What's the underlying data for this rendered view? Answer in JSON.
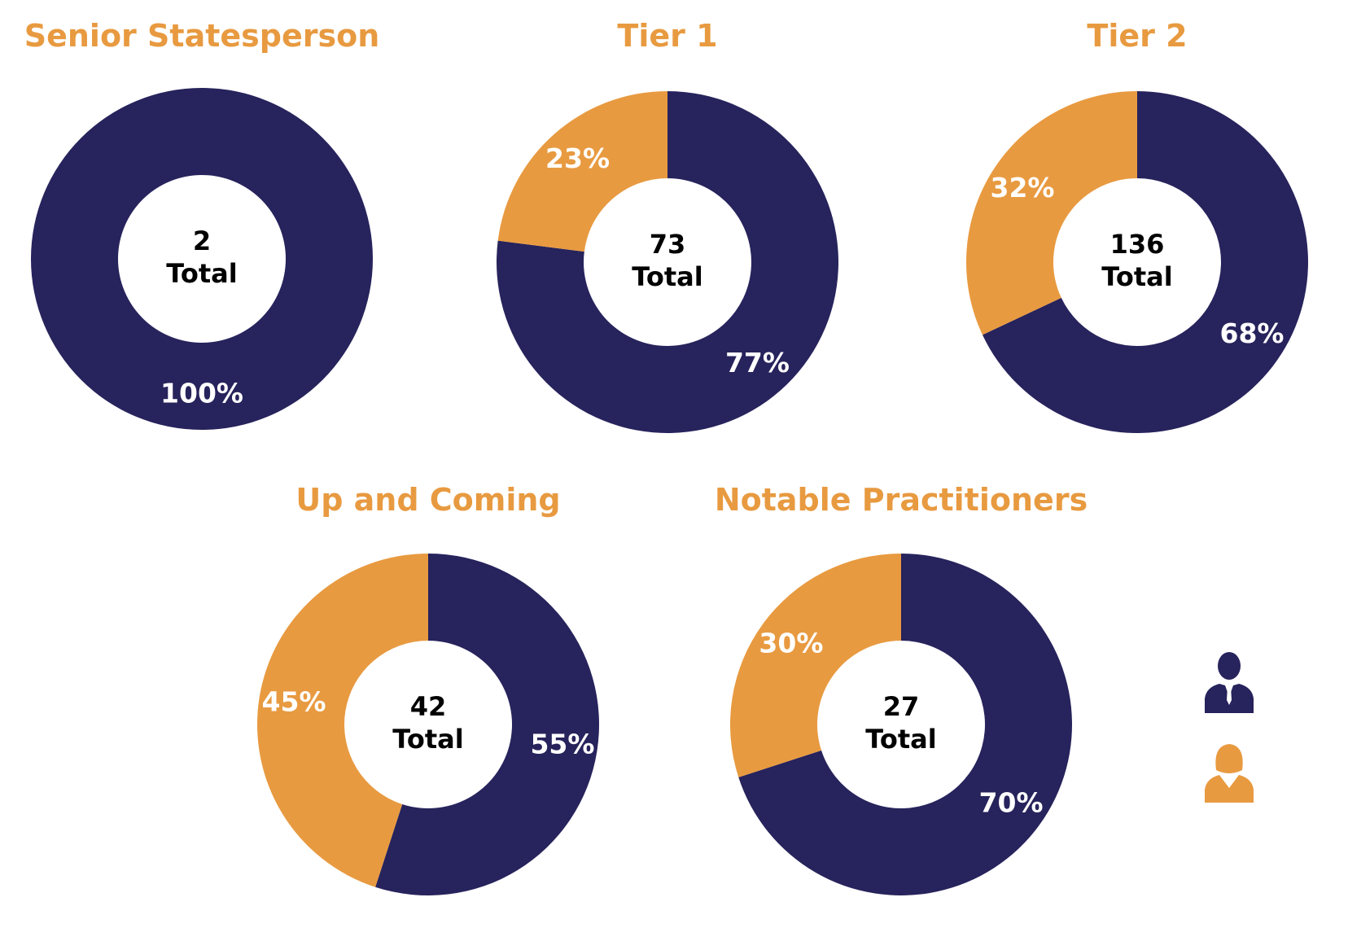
{
  "colors": {
    "male": "#27235c",
    "female": "#e89a40",
    "title": "#e89a40"
  },
  "icons": {
    "male": "man-icon",
    "female": "woman-icon"
  },
  "chart_data": [
    {
      "type": "pie",
      "title": "Senior Statesperson",
      "total": "2",
      "total_label": "Total",
      "slices": [
        {
          "category": "male",
          "value": 100,
          "label": "100%"
        }
      ]
    },
    {
      "type": "pie",
      "title": "Tier 1",
      "total": "73",
      "total_label": "Total",
      "slices": [
        {
          "category": "male",
          "value": 77,
          "label": "77%"
        },
        {
          "category": "female",
          "value": 23,
          "label": "23%"
        }
      ]
    },
    {
      "type": "pie",
      "title": "Tier 2",
      "total": "136",
      "total_label": "Total",
      "slices": [
        {
          "category": "male",
          "value": 68,
          "label": "68%"
        },
        {
          "category": "female",
          "value": 32,
          "label": "32%"
        }
      ]
    },
    {
      "type": "pie",
      "title": "Up and Coming",
      "total": "42",
      "total_label": "Total",
      "slices": [
        {
          "category": "male",
          "value": 55,
          "label": "55%"
        },
        {
          "category": "female",
          "value": 45,
          "label": "45%"
        }
      ]
    },
    {
      "type": "pie",
      "title": "Notable Practitioners",
      "total": "27",
      "total_label": "Total",
      "slices": [
        {
          "category": "male",
          "value": 70,
          "label": "70%"
        },
        {
          "category": "female",
          "value": 30,
          "label": "30%"
        }
      ]
    }
  ]
}
